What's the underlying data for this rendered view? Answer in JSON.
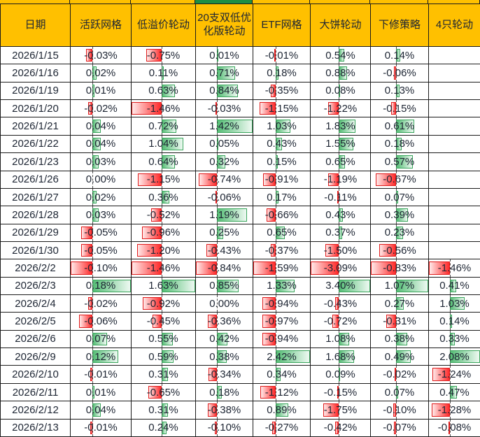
{
  "table": {
    "header": [
      "日期",
      "活跃网格",
      "低溢价轮动",
      "20支双低优化版轮动",
      "ETF网格",
      "大饼轮动",
      "下修策略",
      "4只轮动"
    ],
    "value_format": {
      "decimals": 2,
      "suffix": "%"
    },
    "rows": [
      {
        "date": "2026/1/15",
        "values": [
          -0.03,
          -0.75,
          0.01,
          -0.01,
          0.54,
          0.14,
          null
        ]
      },
      {
        "date": "2026/1/16",
        "values": [
          0.02,
          0.11,
          0.71,
          0.18,
          0.88,
          -0.06,
          null
        ]
      },
      {
        "date": "2026/1/19",
        "values": [
          0.01,
          0.63,
          0.84,
          -0.35,
          0.08,
          0.13,
          null
        ]
      },
      {
        "date": "2026/1/20",
        "values": [
          -0.02,
          -1.46,
          -0.03,
          -1.15,
          -1.22,
          -0.15,
          null
        ]
      },
      {
        "date": "2026/1/21",
        "values": [
          0.04,
          0.72,
          1.42,
          1.03,
          1.83,
          0.61,
          null
        ]
      },
      {
        "date": "2026/1/22",
        "values": [
          0.04,
          1.04,
          0.05,
          0.43,
          1.55,
          0.18,
          null
        ]
      },
      {
        "date": "2026/1/23",
        "values": [
          0.03,
          0.64,
          0.32,
          0.15,
          0.65,
          0.57,
          null
        ]
      },
      {
        "date": "2026/1/26",
        "values": [
          0.0,
          -1.15,
          -0.74,
          -0.91,
          -1.19,
          -0.67,
          null
        ]
      },
      {
        "date": "2026/1/27",
        "values": [
          0.02,
          0.36,
          -0.06,
          0.17,
          -0.11,
          0.07,
          null
        ]
      },
      {
        "date": "2026/1/28",
        "values": [
          0.03,
          -0.52,
          1.19,
          -0.66,
          0.43,
          0.39,
          null
        ]
      },
      {
        "date": "2026/1/29",
        "values": [
          -0.05,
          -0.96,
          0.25,
          0.65,
          0.37,
          0.23,
          null
        ]
      },
      {
        "date": "2026/1/30",
        "values": [
          -0.05,
          -1.2,
          -0.43,
          -0.37,
          -1.5,
          -0.56,
          null
        ]
      },
      {
        "date": "2026/2/2",
        "values": [
          -0.1,
          -1.46,
          -0.84,
          -1.59,
          -3.09,
          -0.83,
          -1.46
        ]
      },
      {
        "date": "2026/2/3",
        "values": [
          0.18,
          1.63,
          0.85,
          1.33,
          3.4,
          1.07,
          0.41
        ]
      },
      {
        "date": "2026/2/4",
        "values": [
          -0.02,
          -0.92,
          0.0,
          -0.94,
          -0.43,
          0.27,
          1.03
        ]
      },
      {
        "date": "2026/2/5",
        "values": [
          -0.06,
          -0.45,
          -0.36,
          -0.97,
          -0.72,
          -0.31,
          0.14
        ]
      },
      {
        "date": "2026/2/6",
        "values": [
          0.07,
          0.55,
          0.42,
          -0.94,
          1.08,
          0.38,
          0.33
        ]
      },
      {
        "date": "2026/2/9",
        "values": [
          0.12,
          0.59,
          0.38,
          2.42,
          1.68,
          0.49,
          2.08
        ]
      },
      {
        "date": "2026/2/10",
        "values": [
          -0.01,
          0.31,
          -0.34,
          0.34,
          0.09,
          -0.02,
          -1.24
        ]
      },
      {
        "date": "2026/2/11",
        "values": [
          0.01,
          -0.65,
          0.18,
          -1.12,
          -0.15,
          0.07,
          0.47
        ]
      },
      {
        "date": "2026/2/12",
        "values": [
          0.04,
          0.31,
          -0.38,
          0.89,
          -1.75,
          -0.1,
          -1.28
        ]
      },
      {
        "date": "2026/2/13",
        "values": [
          -0.01,
          0.24,
          -0.1,
          -0.27,
          -0.42,
          -0.07,
          -0.08
        ]
      }
    ]
  },
  "top_strip": {
    "highlight_column": "低溢价轮动",
    "highlight_column_index": 2
  },
  "colors": {
    "header_bg": "#FFC000",
    "grid_line": "#1b1b1b",
    "text": "#1d2533",
    "top_strip_bg": "#FFC000",
    "top_strip_highlight": "#1e8e45",
    "negative_bar_border": "#e01b1b",
    "negative_bar_fill": "#ff2a2a",
    "negative_bar_fade": "#ffe9e9",
    "positive_bar_border": "#3aa55c",
    "positive_bar_fill": "#55bd75",
    "positive_bar_fade": "#eef9f2",
    "axis_line": "#2d2d2d"
  }
}
